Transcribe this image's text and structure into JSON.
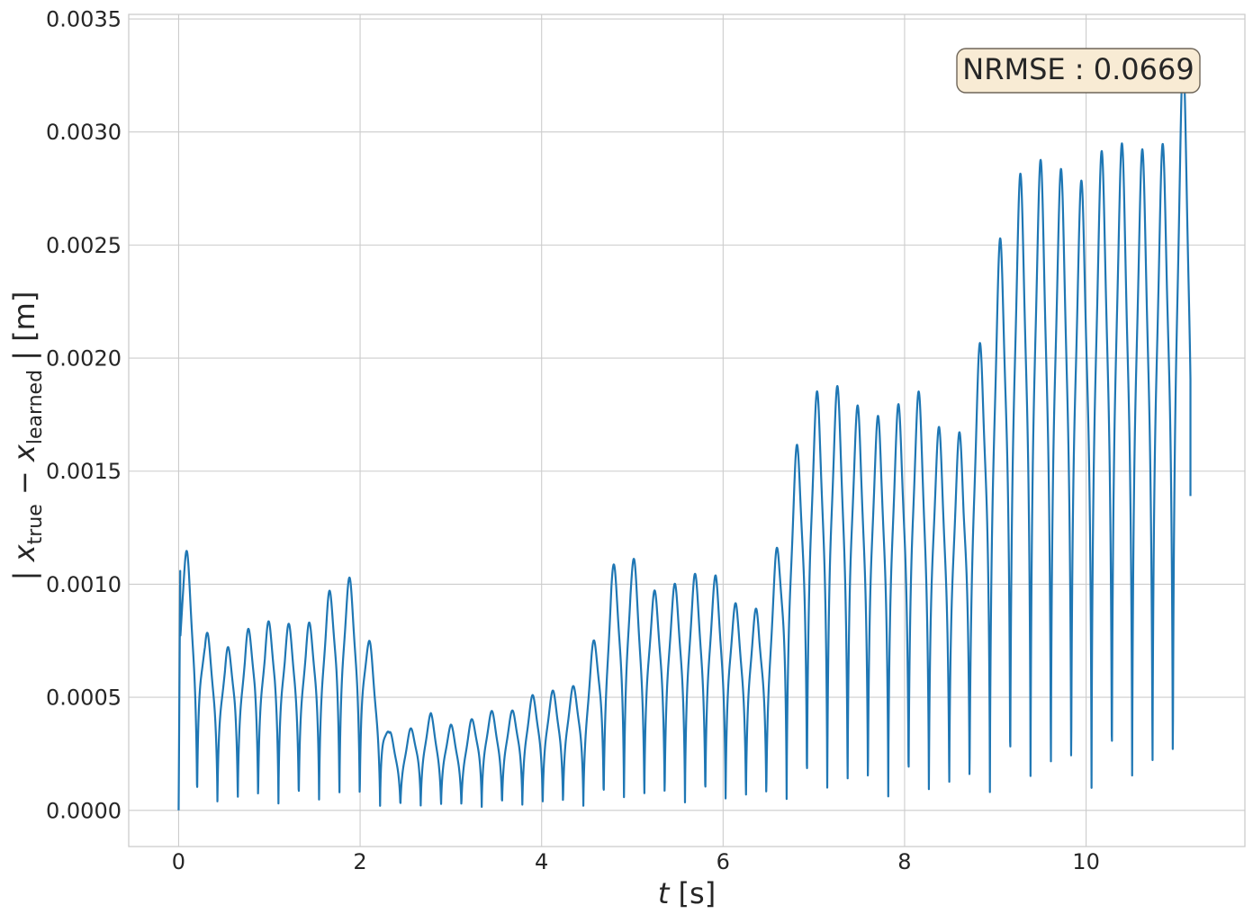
{
  "chart_data": {
    "type": "line",
    "title": "",
    "xlabel": {
      "var": "t",
      "unit": " [s]"
    },
    "ylabel": {
      "pre": "| ",
      "x1": "x",
      "sub1": "true",
      "minus": " − ",
      "x2": "x",
      "sub2": "learned",
      "post": " |  [m]"
    },
    "xlim": [
      -0.55,
      11.75
    ],
    "ylim": [
      -0.00016,
      0.00352
    ],
    "xticks": [
      0,
      2,
      4,
      6,
      8,
      10
    ],
    "xtick_labels": [
      "0",
      "2",
      "4",
      "6",
      "8",
      "10"
    ],
    "yticks": [
      0,
      0.0005,
      0.001,
      0.0015,
      0.002,
      0.0025,
      0.003,
      0.0035
    ],
    "ytick_labels": [
      "0.0000",
      "0.0005",
      "0.0010",
      "0.0015",
      "0.0020",
      "0.0025",
      "0.0030",
      "0.0035"
    ],
    "grid": true,
    "annotation": {
      "text": "NRMSE : 0.0669"
    },
    "series": [
      {
        "color": "#1f77b4",
        "period": 0.224,
        "t_end": 11.15,
        "end_value": 0.00139,
        "peaks": [
          [
            0.04,
            0.00121
          ],
          [
            0.2,
            0.00101
          ],
          [
            0.29,
            0.00079
          ],
          [
            0.4,
            0.00077
          ],
          [
            0.51,
            0.00069
          ],
          [
            0.62,
            0.0008
          ],
          [
            0.73,
            0.00076
          ],
          [
            0.84,
            0.00089
          ],
          [
            0.95,
            0.0008
          ],
          [
            1.06,
            0.0009
          ],
          [
            1.17,
            0.00081
          ],
          [
            1.28,
            0.00085
          ],
          [
            1.4,
            0.0008
          ],
          [
            1.51,
            0.00089
          ],
          [
            1.62,
            0.00093
          ],
          [
            1.74,
            0.00105
          ],
          [
            1.86,
            0.00104
          ],
          [
            1.97,
            0.00099
          ],
          [
            2.09,
            0.00077
          ],
          [
            2.2,
            0.00062
          ],
          [
            2.32,
            0.00035
          ],
          [
            2.44,
            0.00031
          ],
          [
            2.55,
            0.00036
          ],
          [
            2.66,
            0.0004
          ],
          [
            2.78,
            0.00043
          ],
          [
            2.89,
            0.00037
          ],
          [
            3.0,
            0.00038
          ],
          [
            3.11,
            0.00034
          ],
          [
            3.22,
            0.0004
          ],
          [
            3.33,
            0.00044
          ],
          [
            3.45,
            0.00044
          ],
          [
            3.56,
            0.00042
          ],
          [
            3.67,
            0.00044
          ],
          [
            3.78,
            0.00047
          ],
          [
            3.9,
            0.00051
          ],
          [
            4.01,
            0.00052
          ],
          [
            4.12,
            0.00053
          ],
          [
            4.23,
            0.00053
          ],
          [
            4.35,
            0.00055
          ],
          [
            4.46,
            0.00058
          ],
          [
            4.55,
            0.00073
          ],
          [
            4.67,
            0.00084
          ],
          [
            4.77,
            0.00109
          ],
          [
            4.88,
            0.00108
          ],
          [
            4.98,
            0.00116
          ],
          [
            5.1,
            0.00101
          ],
          [
            5.21,
            0.00096
          ],
          [
            5.32,
            0.001
          ],
          [
            5.44,
            0.001
          ],
          [
            5.56,
            0.00101
          ],
          [
            5.68,
            0.00105
          ],
          [
            5.8,
            0.00101
          ],
          [
            5.92,
            0.00104
          ],
          [
            6.04,
            0.00099
          ],
          [
            6.16,
            0.0009
          ],
          [
            6.28,
            0.00092
          ],
          [
            6.4,
            0.00088
          ],
          [
            6.51,
            0.001
          ],
          [
            6.62,
            0.00122
          ],
          [
            6.73,
            0.00152
          ],
          [
            6.85,
            0.00166
          ],
          [
            6.96,
            0.00186
          ],
          [
            7.07,
            0.00185
          ],
          [
            7.18,
            0.00192
          ],
          [
            7.29,
            0.00186
          ],
          [
            7.4,
            0.00186
          ],
          [
            7.52,
            0.00176
          ],
          [
            7.63,
            0.00178
          ],
          [
            7.74,
            0.00173
          ],
          [
            7.86,
            0.00179
          ],
          [
            7.97,
            0.0018
          ],
          [
            8.08,
            0.00189
          ],
          [
            8.2,
            0.00183
          ],
          [
            8.31,
            0.00174
          ],
          [
            8.42,
            0.00167
          ],
          [
            8.53,
            0.00166
          ],
          [
            8.65,
            0.00168
          ],
          [
            8.76,
            0.00196
          ],
          [
            8.87,
            0.00213
          ],
          [
            8.99,
            0.00245
          ],
          [
            9.1,
            0.00259
          ],
          [
            9.21,
            0.00281
          ],
          [
            9.32,
            0.00282
          ],
          [
            9.44,
            0.00292
          ],
          [
            9.55,
            0.00284
          ],
          [
            9.66,
            0.00286
          ],
          [
            9.77,
            0.00282
          ],
          [
            9.89,
            0.00278
          ],
          [
            10.0,
            0.00279
          ],
          [
            10.11,
            0.00291
          ],
          [
            10.22,
            0.00292
          ],
          [
            10.34,
            0.003
          ],
          [
            10.45,
            0.0029
          ],
          [
            10.56,
            0.00294
          ],
          [
            10.67,
            0.00291
          ],
          [
            10.78,
            0.00293
          ],
          [
            10.89,
            0.00296
          ],
          [
            10.99,
            0.00321
          ],
          [
            11.09,
            0.00335
          ]
        ]
      }
    ]
  }
}
